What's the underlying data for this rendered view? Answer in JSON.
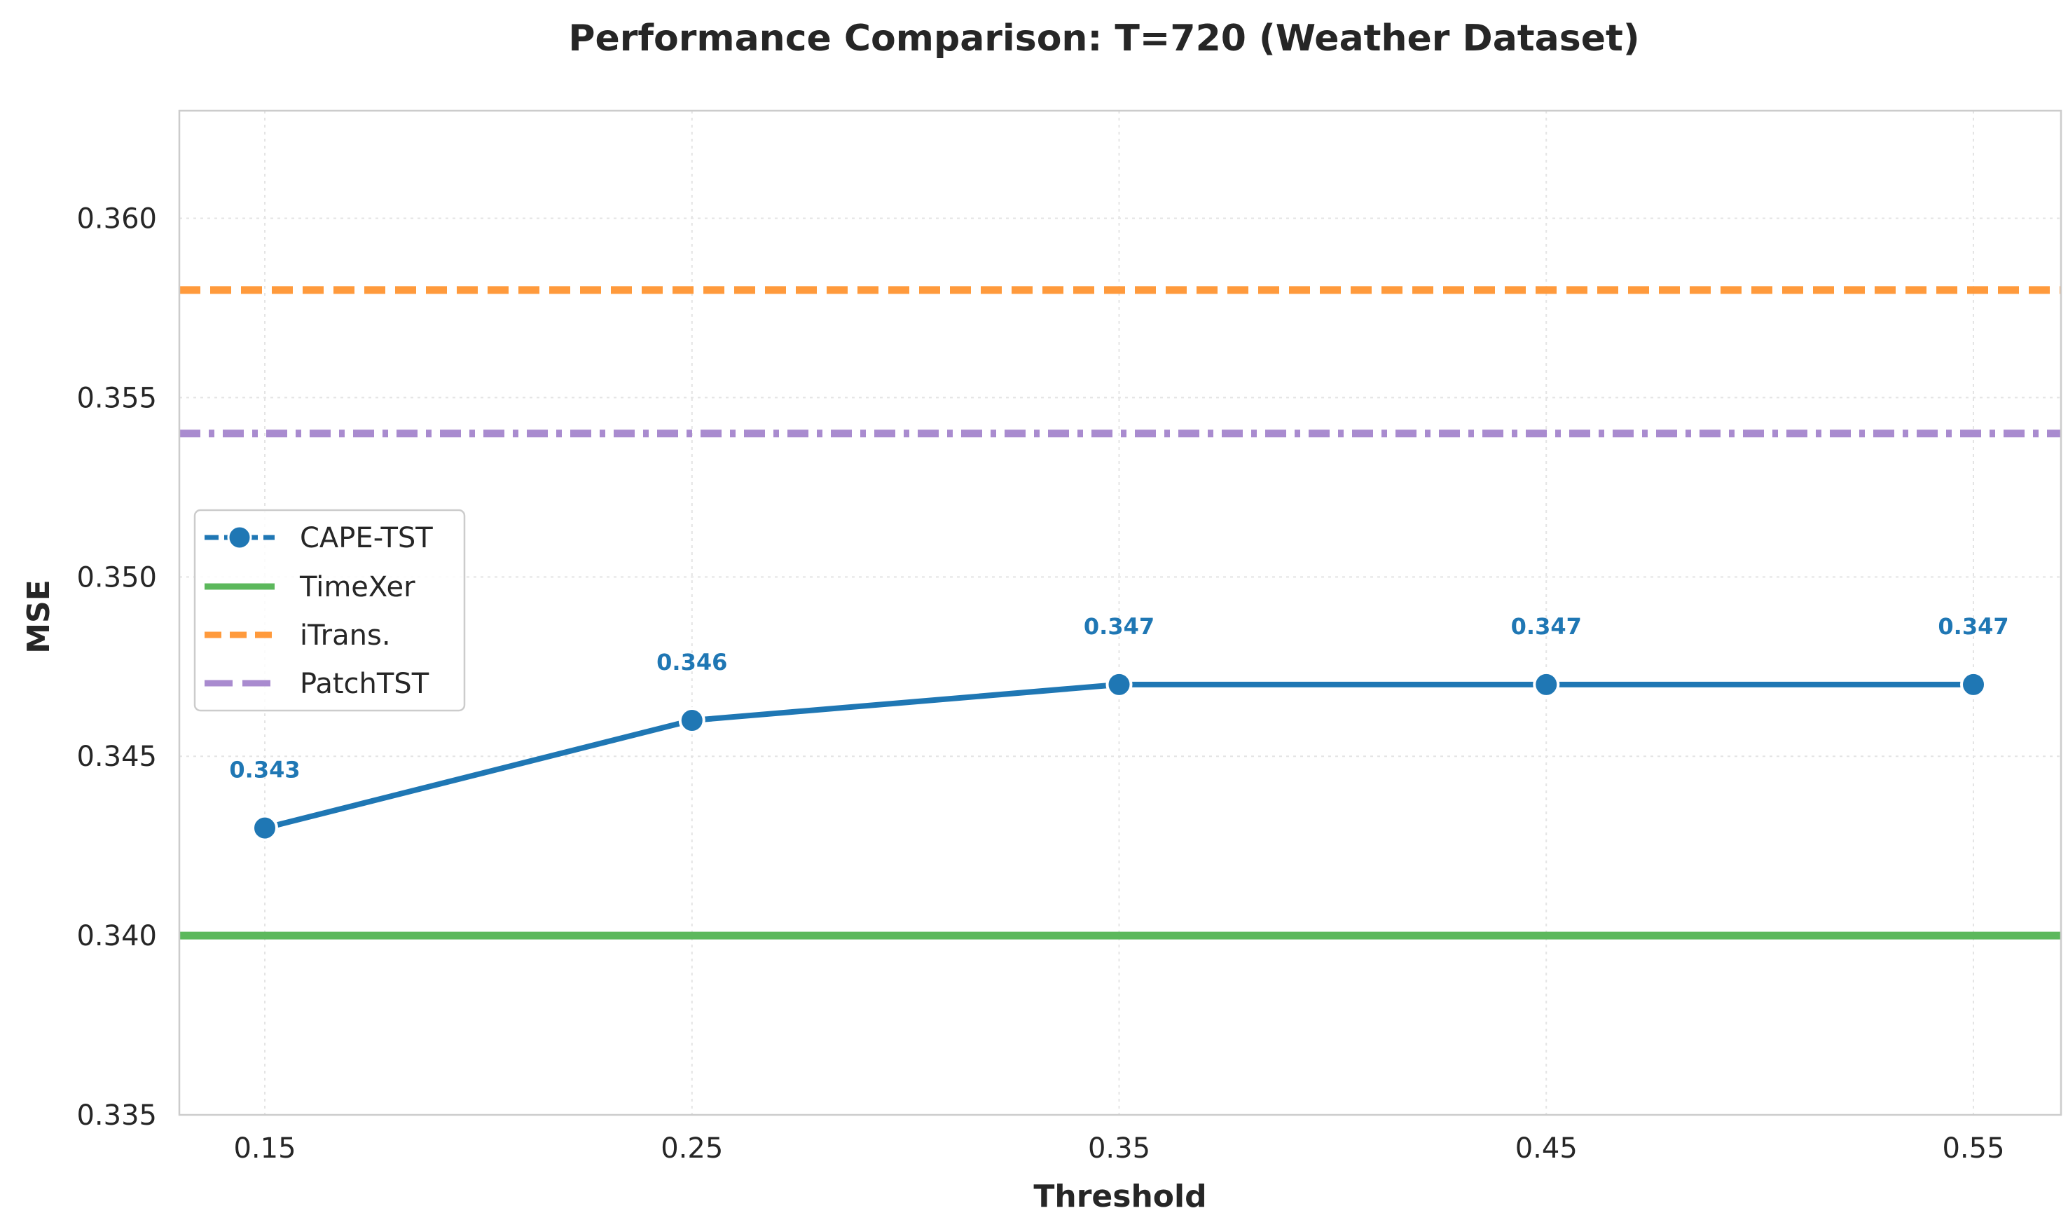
{
  "chart_data": {
    "type": "line",
    "title": "Performance Comparison: T=720 (Weather Dataset)",
    "xlabel": "Threshold",
    "ylabel": "MSE",
    "x": [
      0.15,
      0.25,
      0.35,
      0.45,
      0.55
    ],
    "x_tick_labels": [
      "0.15",
      "0.25",
      "0.35",
      "0.45",
      "0.55"
    ],
    "ylim": [
      0.335,
      0.363
    ],
    "y_ticks": [
      0.335,
      0.34,
      0.345,
      0.35,
      0.355,
      0.36
    ],
    "y_tick_labels": [
      "0.335",
      "0.340",
      "0.345",
      "0.350",
      "0.355",
      "0.360"
    ],
    "grid": true,
    "legend_position": "center-left",
    "series": [
      {
        "name": "CAPE-TST",
        "kind": "line-markers",
        "color": "#1f77b4",
        "values": [
          0.343,
          0.346,
          0.347,
          0.347,
          0.347
        ],
        "data_labels": [
          "0.343",
          "0.346",
          "0.347",
          "0.347",
          "0.347"
        ]
      },
      {
        "name": "TimeXer",
        "kind": "hline",
        "style": "solid",
        "color": "#5cb85c",
        "value": 0.34
      },
      {
        "name": "iTrans.",
        "kind": "hline",
        "style": "dashed",
        "color": "#ff9a3c",
        "value": 0.358
      },
      {
        "name": "PatchTST",
        "kind": "hline",
        "style": "dashdot",
        "color": "#a98bcf",
        "value": 0.354
      }
    ]
  }
}
